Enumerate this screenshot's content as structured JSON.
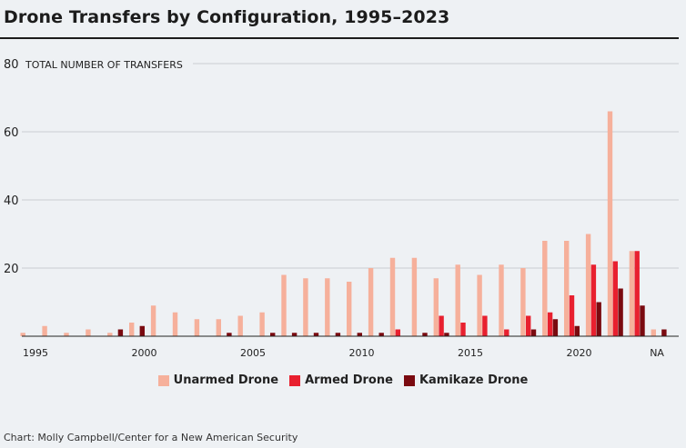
{
  "chart_data": {
    "type": "bar",
    "title": "Drone Transfers by Configuration, 1995–2023",
    "ylabel": "TOTAL NUMBER OF TRANSFERS",
    "ylim": [
      0,
      80
    ],
    "yticks": [
      20,
      40,
      60,
      80
    ],
    "grid": true,
    "legend_position": "bottom",
    "categories": [
      "1995",
      "1996",
      "1997",
      "1998",
      "1999",
      "2000",
      "2001",
      "2002",
      "2003",
      "2004",
      "2005",
      "2006",
      "2007",
      "2008",
      "2009",
      "2010",
      "2011",
      "2012",
      "2013",
      "2014",
      "2015",
      "2016",
      "2017",
      "2018",
      "2019",
      "2020",
      "2021",
      "2022",
      "2023",
      "NA"
    ],
    "xtick_labels": [
      "1995",
      "",
      "",
      "",
      "",
      "2000",
      "",
      "",
      "",
      "",
      "2005",
      "",
      "",
      "",
      "",
      "2010",
      "",
      "",
      "",
      "",
      "2015",
      "",
      "",
      "",
      "",
      "2020",
      "",
      "",
      "",
      "NA"
    ],
    "series": [
      {
        "name": "Unarmed Drone",
        "color": "#f6b09b",
        "values": [
          1,
          3,
          1,
          2,
          1,
          4,
          9,
          7,
          5,
          5,
          6,
          7,
          18,
          17,
          17,
          16,
          20,
          23,
          23,
          17,
          21,
          18,
          21,
          20,
          28,
          28,
          30,
          66,
          25,
          2
        ]
      },
      {
        "name": "Armed Drone",
        "color": "#e8202f",
        "values": [
          0,
          0,
          0,
          0,
          0,
          0,
          0,
          0,
          0,
          0,
          0,
          0,
          0,
          0,
          0,
          0,
          0,
          2,
          0,
          6,
          4,
          6,
          2,
          6,
          7,
          12,
          21,
          22,
          25,
          0
        ]
      },
      {
        "name": "Kamikaze Drone",
        "color": "#7a0a10",
        "values": [
          0,
          0,
          0,
          0,
          2,
          3,
          0,
          0,
          0,
          1,
          0,
          1,
          1,
          1,
          1,
          1,
          1,
          0,
          1,
          1,
          0,
          0,
          0,
          2,
          5,
          3,
          10,
          14,
          9,
          2
        ]
      }
    ],
    "source": "Chart: Molly Campbell/Center for a New American Security"
  }
}
